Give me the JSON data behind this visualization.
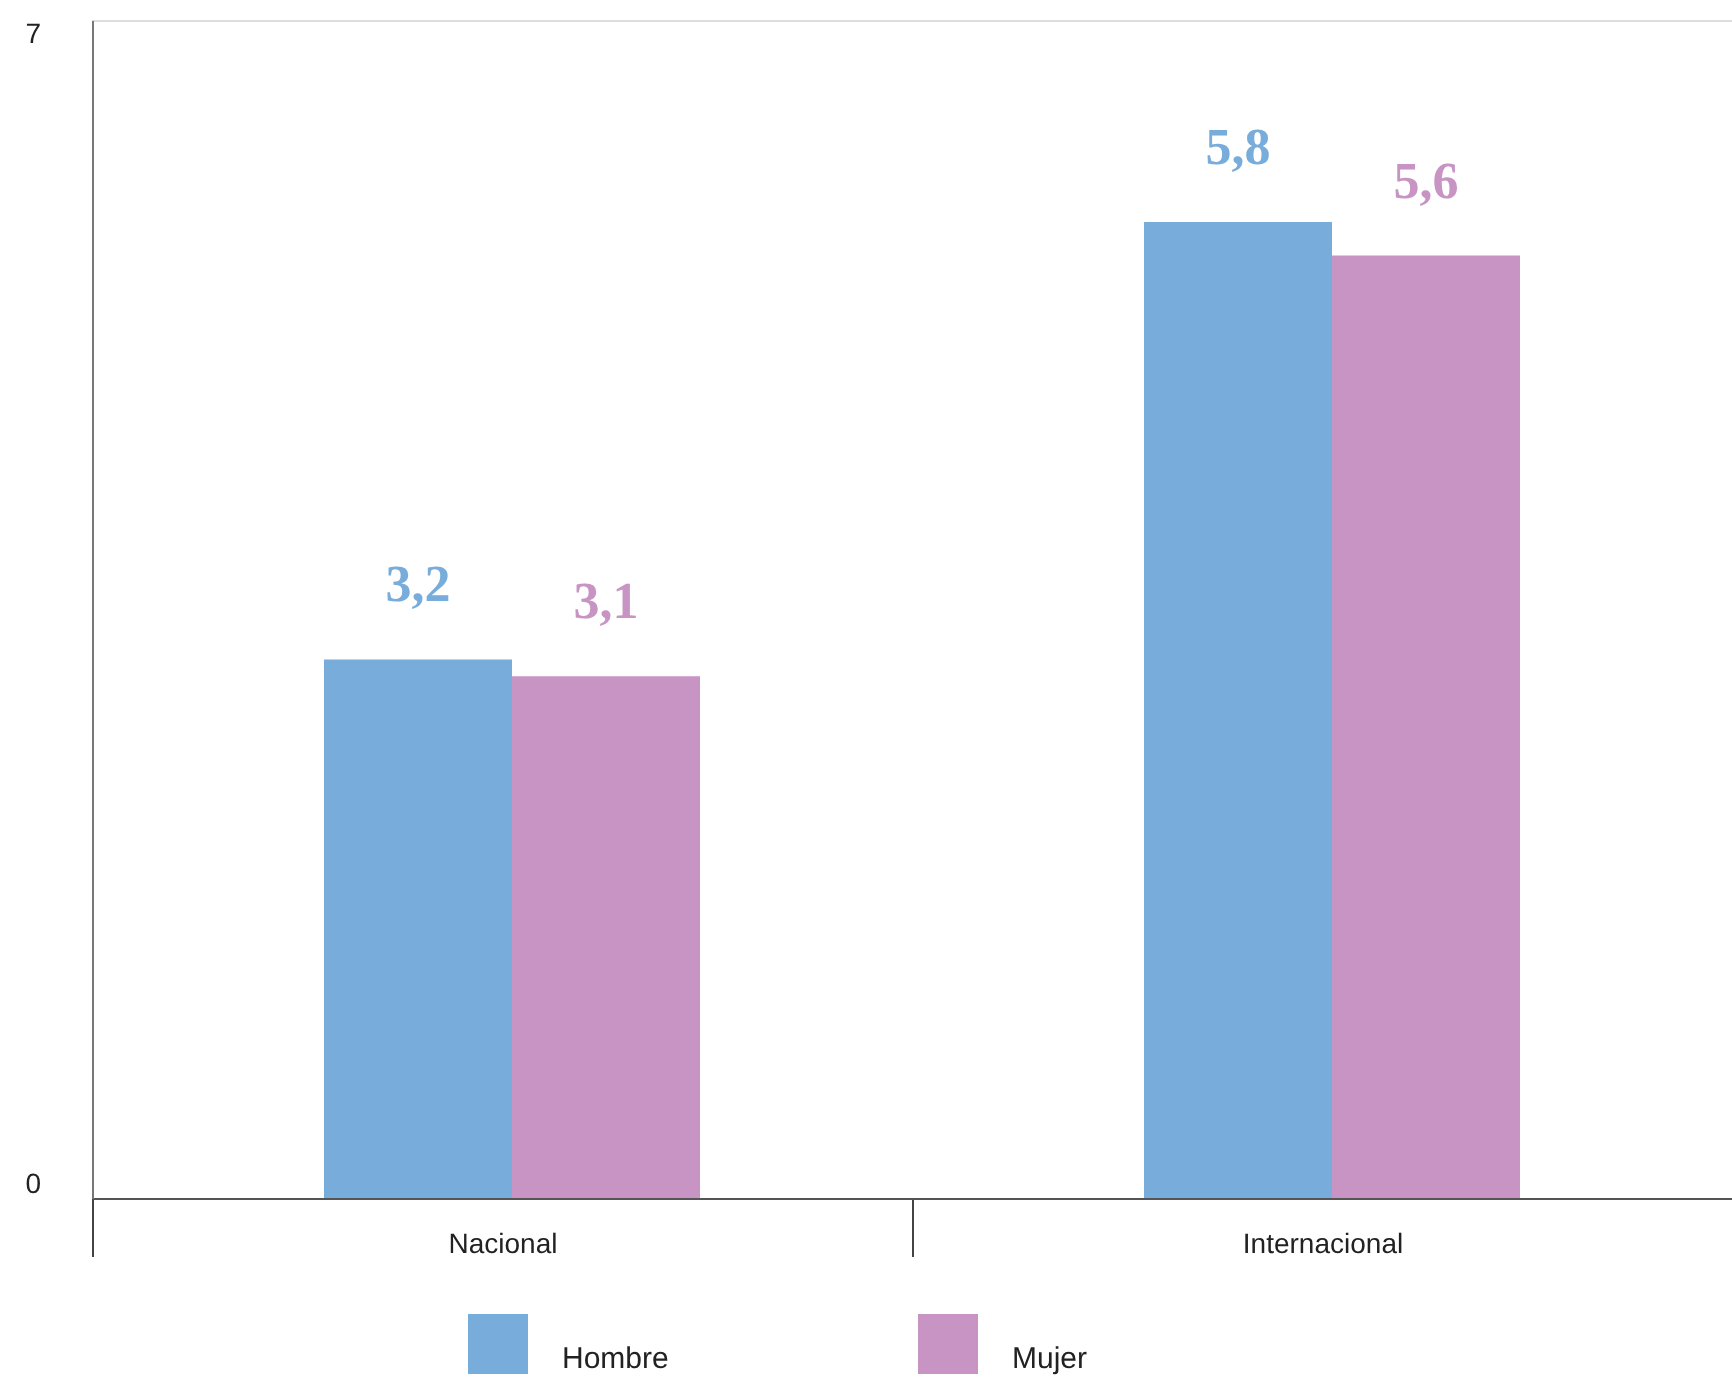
{
  "chart_data": {
    "type": "bar",
    "categories": [
      "Nacional",
      "Internacional"
    ],
    "series": [
      {
        "name": "Hombre",
        "color": "#77acdb",
        "values": [
          3.2,
          5.8
        ],
        "value_labels": [
          "3,2",
          "5,8"
        ]
      },
      {
        "name": "Mujer",
        "color": "#c794c4",
        "values": [
          3.1,
          5.6
        ],
        "value_labels": [
          "3,1",
          "5,6"
        ]
      }
    ],
    "ylim": [
      0,
      7
    ],
    "yticks": [
      0,
      7
    ],
    "grid": false,
    "legend": "bottom"
  }
}
